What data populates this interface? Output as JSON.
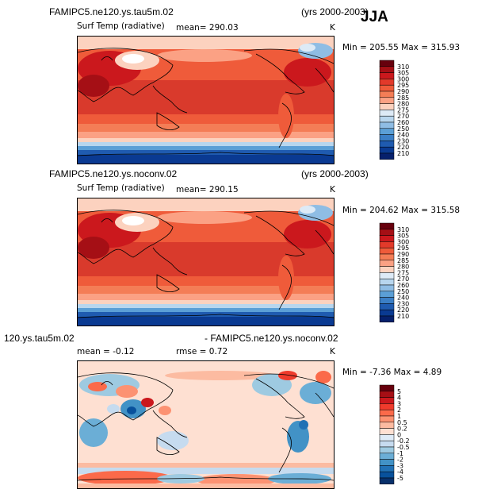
{
  "season": "JJA",
  "panels": [
    {
      "title_left": "FAMIPC5.ne120.ys.tau5m.02",
      "title_right": "(yrs 2000-2003)",
      "field": "Surf Temp (radiative)",
      "mean": "mean= 290.03",
      "units": "K",
      "minmax": "Min = 205.55  Max = 315.93",
      "levels": [
        "310",
        "305",
        "300",
        "295",
        "290",
        "285",
        "280",
        "275",
        "270",
        "260",
        "250",
        "240",
        "230",
        "220",
        "210"
      ],
      "colors": [
        "#67000d",
        "#a50f15",
        "#cb181d",
        "#e23a2a",
        "#ef5b3a",
        "#f47d56",
        "#fba184",
        "#fcd2bf",
        "#ddeaf6",
        "#b8d6ee",
        "#8fbde4",
        "#5b9fd6",
        "#3b7fc6",
        "#1f5bb0",
        "#0a3a92",
        "#06206c"
      ]
    },
    {
      "title_left": "FAMIPC5.ne120.ys.noconv.02",
      "title_right": "(yrs 2000-2003)",
      "field": "Surf Temp (radiative)",
      "mean": "mean= 290.15",
      "units": "K",
      "minmax": "Min = 204.62  Max = 315.58",
      "levels": [
        "310",
        "305",
        "300",
        "295",
        "290",
        "285",
        "280",
        "275",
        "270",
        "260",
        "250",
        "240",
        "230",
        "220",
        "210"
      ],
      "colors": [
        "#67000d",
        "#a50f15",
        "#cb181d",
        "#e23a2a",
        "#ef5b3a",
        "#f47d56",
        "#fba184",
        "#fcd2bf",
        "#ddeaf6",
        "#b8d6ee",
        "#8fbde4",
        "#5b9fd6",
        "#3b7fc6",
        "#1f5bb0",
        "#0a3a92",
        "#06206c"
      ]
    },
    {
      "title_left": "120.ys.tau5m.02",
      "title_right": "- FAMIPC5.ne120.ys.noconv.02",
      "mean": "mean =  -0.12",
      "rmse": "rmse =   0.72",
      "units": "K",
      "minmax": "Min =  -7.36  Max =    4.89",
      "levels": [
        "5",
        "4",
        "3",
        "2",
        "1",
        "0.5",
        "0.2",
        "0",
        "-0.2",
        "-0.5",
        "-1",
        "-2",
        "-3",
        "-4",
        "-5"
      ],
      "colors": [
        "#67000d",
        "#a50f15",
        "#cb181d",
        "#ef3b2c",
        "#fb6a4a",
        "#fc9272",
        "#fcbba1",
        "#fee0d2",
        "#deebf7",
        "#c6dbef",
        "#9ecae1",
        "#6baed6",
        "#4292c6",
        "#2171b5",
        "#08519c",
        "#08306b"
      ]
    }
  ],
  "chart_data": [
    {
      "type": "heatmap",
      "title": "FAMIPC5.ne120.ys.tau5m.02",
      "subtitle": "Surf Temp (radiative)",
      "period": "(yrs 2000-2003)",
      "season": "JJA",
      "units": "K",
      "mean": 290.03,
      "min": 205.55,
      "max": 315.93,
      "contour_levels": [
        210,
        220,
        230,
        240,
        250,
        260,
        270,
        275,
        280,
        285,
        290,
        295,
        300,
        305,
        310
      ]
    },
    {
      "type": "heatmap",
      "title": "FAMIPC5.ne120.ys.noconv.02",
      "subtitle": "Surf Temp (radiative)",
      "period": "(yrs 2000-2003)",
      "season": "JJA",
      "units": "K",
      "mean": 290.15,
      "min": 204.62,
      "max": 315.58,
      "contour_levels": [
        210,
        220,
        230,
        240,
        250,
        260,
        270,
        275,
        280,
        285,
        290,
        295,
        300,
        305,
        310
      ]
    },
    {
      "type": "heatmap",
      "title": "120.ys.tau5m.02 - FAMIPC5.ne120.ys.noconv.02",
      "units": "K",
      "mean": -0.12,
      "rmse": 0.72,
      "min": -7.36,
      "max": 4.89,
      "contour_levels": [
        -5,
        -4,
        -3,
        -2,
        -1,
        -0.5,
        -0.2,
        0,
        0.2,
        0.5,
        1,
        2,
        3,
        4,
        5
      ]
    }
  ]
}
